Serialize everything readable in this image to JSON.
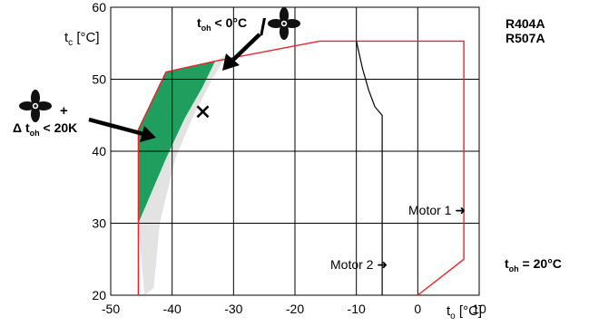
{
  "chart_data": {
    "type": "line",
    "xlim": [
      -50,
      10
    ],
    "ylim": [
      20,
      60
    ],
    "grid": true,
    "x_ticks": [
      -50,
      -40,
      -30,
      -20,
      -10,
      0,
      10
    ],
    "y_ticks": [
      20,
      30,
      40,
      50,
      60
    ],
    "x_tick_labels": [
      "-50",
      "-40",
      "-30",
      "-20",
      "-10",
      "0",
      "10"
    ],
    "y_tick_labels": [
      "20",
      "30",
      "40",
      "50",
      "60"
    ],
    "xlabel": {
      "main": "t",
      "sub": "o",
      "unit": " [°C]"
    },
    "ylabel": {
      "main": "t",
      "sub": "c",
      "unit": " [°C]"
    },
    "refrigerants": [
      "R404A",
      "R507A"
    ],
    "envelope": [
      [
        -45.5,
        20
      ],
      [
        -45.5,
        43
      ],
      [
        -41,
        51
      ],
      [
        -33,
        52.5
      ],
      [
        -16,
        55.3
      ],
      [
        7.5,
        55.3
      ],
      [
        7.5,
        25
      ],
      [
        0,
        20
      ]
    ],
    "green_region": [
      [
        -45.5,
        30
      ],
      [
        -45.5,
        43
      ],
      [
        -41,
        51
      ],
      [
        -33,
        52.5
      ],
      [
        -35,
        49
      ],
      [
        -38,
        44.5
      ],
      [
        -41,
        39
      ]
    ],
    "grey_region": [
      [
        -45.5,
        30
      ],
      [
        -41,
        39
      ],
      [
        -38,
        44.5
      ],
      [
        -35,
        49
      ],
      [
        -33,
        52.5
      ],
      [
        -31,
        53.5
      ],
      [
        -33.5,
        50
      ],
      [
        -36.5,
        45
      ],
      [
        -39.5,
        39
      ],
      [
        -42,
        30
      ],
      [
        -43,
        21
      ],
      [
        -44.5,
        20
      ]
    ],
    "motor1_curve": [
      [
        -10,
        55.3
      ],
      [
        -9,
        51.5
      ],
      [
        -8,
        48.5
      ],
      [
        -7,
        46.2
      ],
      [
        -6,
        45.2
      ],
      [
        -5.8,
        45
      ],
      [
        -5.8,
        20
      ]
    ],
    "motor2_line": [
      [
        -5.8,
        45
      ],
      [
        -5.8,
        20
      ]
    ],
    "marker": [
      -35,
      45.5
    ],
    "annotations": {
      "toh_label": {
        "main": "t",
        "sub": "oh",
        "rest": " < 0°C",
        "slash": "/"
      },
      "delta_label": {
        "prefix": "Δ t",
        "sub": "oh",
        "rest": " < 20K",
        "plus": "+"
      },
      "motor1": "Motor 1 ➜",
      "motor2": "Motor 2 ➜",
      "toh20": {
        "main": "t",
        "sub": "oh",
        "rest": " = 20°C"
      }
    },
    "colors": {
      "envelope": "#e8242a",
      "green": "#1f9e5e",
      "grey": "#e3e3e3",
      "grid": "#000000"
    }
  }
}
